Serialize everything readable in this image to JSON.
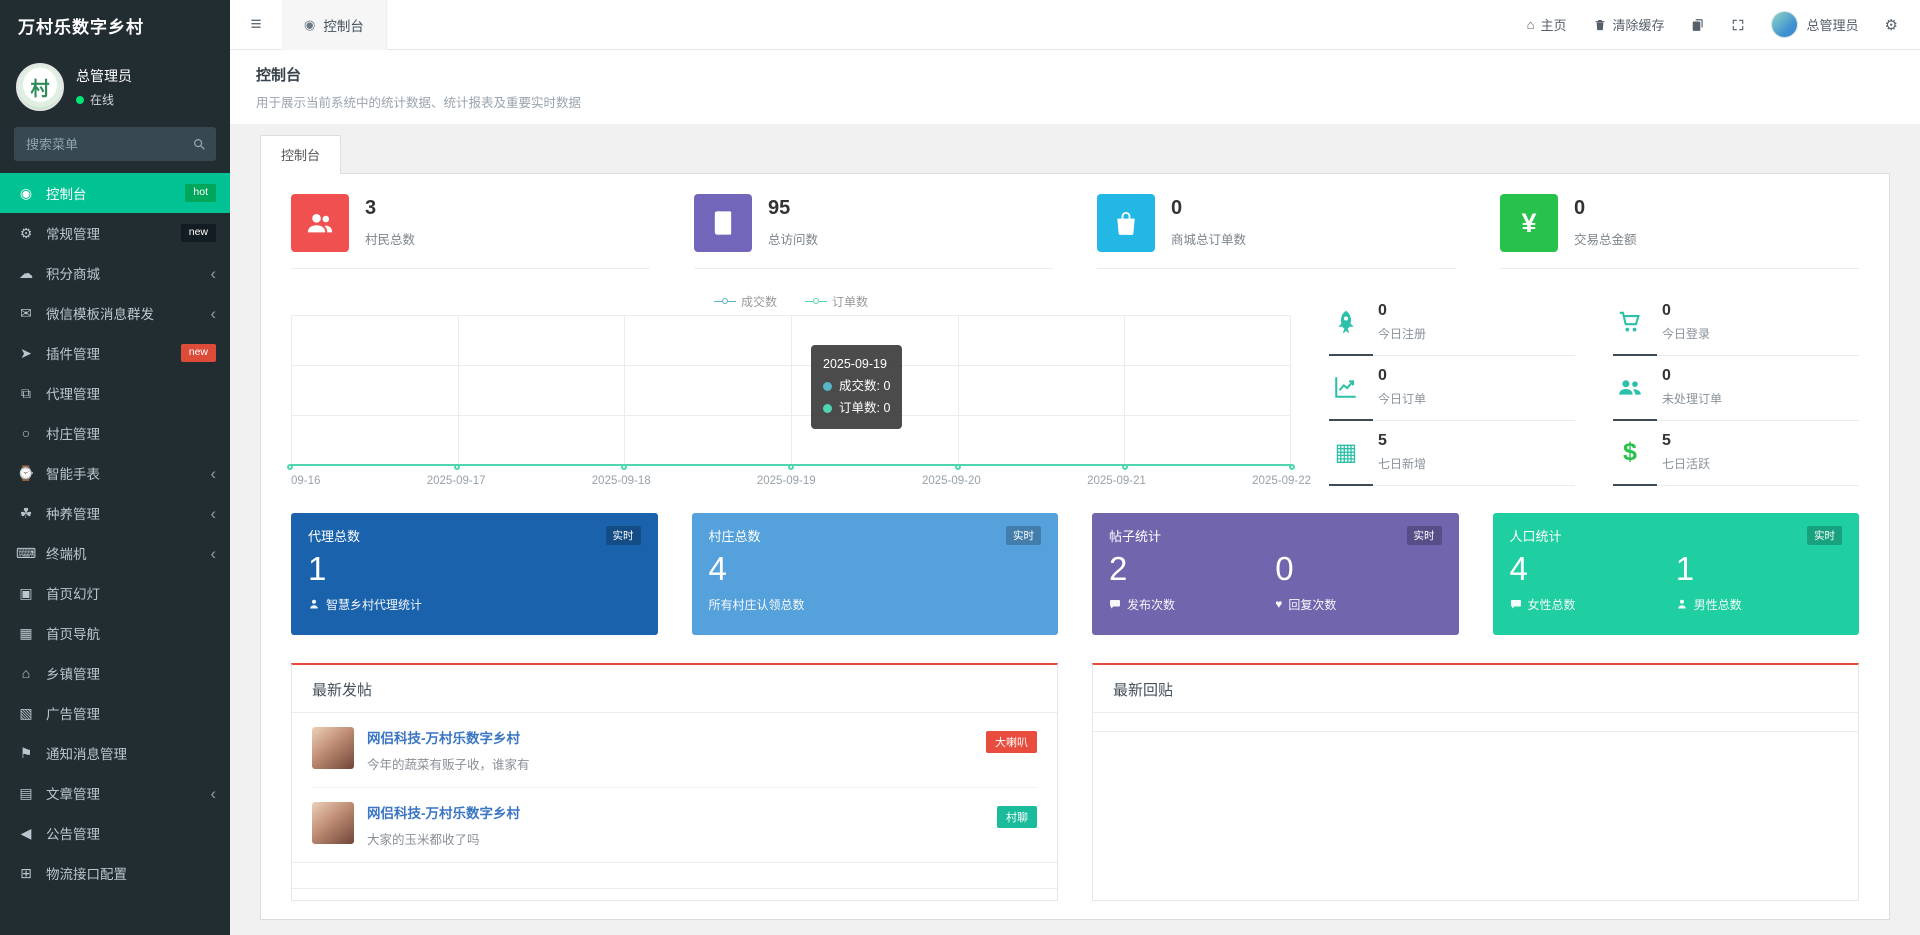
{
  "app": {
    "title": "万村乐数字乡村"
  },
  "user": {
    "name": "总管理员",
    "status": "在线"
  },
  "sidebar": {
    "search_placeholder": "搜索菜单",
    "items": [
      {
        "label": "控制台",
        "icon": "gauge",
        "badge": "hot",
        "badge_color": "green",
        "state": "active"
      },
      {
        "label": "常规管理",
        "icon": "cogs",
        "badge": "new",
        "badge_color": "dark"
      },
      {
        "label": "积分商城",
        "icon": "cloud",
        "chevron": true
      },
      {
        "label": "微信模板消息群发",
        "icon": "envelope",
        "chevron": true
      },
      {
        "label": "插件管理",
        "icon": "plane",
        "badge": "new",
        "badge_color": "red"
      },
      {
        "label": "代理管理",
        "icon": "sitemap"
      },
      {
        "label": "村庄管理",
        "icon": "circle"
      },
      {
        "label": "智能手表",
        "icon": "watch",
        "chevron": true
      },
      {
        "label": "种养管理",
        "icon": "leaf",
        "chevron": true
      },
      {
        "label": "终端机",
        "icon": "terminal",
        "chevron": true
      },
      {
        "label": "首页幻灯",
        "icon": "image"
      },
      {
        "label": "首页导航",
        "icon": "grid"
      },
      {
        "label": "乡镇管理",
        "icon": "bank"
      },
      {
        "label": "广告管理",
        "icon": "ad"
      },
      {
        "label": "通知消息管理",
        "icon": "bullhorn"
      },
      {
        "label": "文章管理",
        "icon": "file",
        "chevron": true
      },
      {
        "label": "公告管理",
        "icon": "volume"
      },
      {
        "label": "物流接口配置",
        "icon": "truck"
      }
    ]
  },
  "topbar": {
    "tab_label": "控制台",
    "home_label": "主页",
    "clear_cache_label": "清除缓存",
    "admin_label": "总管理员"
  },
  "page": {
    "title": "控制台",
    "subtitle": "用于展示当前系统中的统计数据、统计报表及重要实时数据",
    "tab_label": "控制台"
  },
  "stats": [
    {
      "value": "3",
      "label": "村民总数",
      "icon": "users",
      "color": "#f05050"
    },
    {
      "value": "95",
      "label": "总访问数",
      "icon": "book",
      "color": "#7266ba"
    },
    {
      "value": "0",
      "label": "商城总订单数",
      "icon": "bag",
      "color": "#23b7e5"
    },
    {
      "value": "0",
      "label": "交易总金额",
      "icon": "yen",
      "color": "#27c24c"
    }
  ],
  "chart_data": {
    "type": "line",
    "x": [
      "09-16",
      "2025-09-17",
      "2025-09-18",
      "2025-09-19",
      "2025-09-20",
      "2025-09-21",
      "2025-09-22"
    ],
    "series": [
      {
        "name": "成交数",
        "color": "#58b5c8",
        "values": [
          0,
          0,
          0,
          0,
          0,
          0,
          0
        ]
      },
      {
        "name": "订单数",
        "color": "#4fd6b0",
        "values": [
          0,
          0,
          0,
          0,
          0,
          0,
          0
        ]
      }
    ],
    "ylim": [
      0,
      1
    ],
    "grid": true,
    "legend_position": "top-center",
    "tooltip": {
      "title": "2025-09-19",
      "rows": [
        {
          "text": "成交数: 0",
          "color": "#58b5c8"
        },
        {
          "text": "订单数: 0",
          "color": "#4fd6b0"
        }
      ]
    }
  },
  "quick_stats": [
    {
      "value": "0",
      "label": "今日注册",
      "icon": "rocket"
    },
    {
      "value": "0",
      "label": "今日登录",
      "icon": "cart"
    },
    {
      "value": "0",
      "label": "今日订单",
      "icon": "chart"
    },
    {
      "value": "0",
      "label": "未处理订单",
      "icon": "group"
    },
    {
      "value": "5",
      "label": "七日新增",
      "icon": "table"
    },
    {
      "value": "5",
      "label": "七日活跃",
      "icon": "dollar"
    }
  ],
  "cards": [
    {
      "title": "代理总数",
      "badge": "实时",
      "color": "#1a62ab",
      "metrics": [
        {
          "value": "1",
          "icon": "person",
          "label": "智慧乡村代理统计"
        }
      ]
    },
    {
      "title": "村庄总数",
      "badge": "实时",
      "color": "#55a1dc",
      "metrics": [
        {
          "value": "4",
          "label": "所有村庄认领总数"
        }
      ]
    },
    {
      "title": "帖子统计",
      "badge": "实时",
      "color": "#7165ae",
      "metrics": [
        {
          "value": "2",
          "icon": "bubble",
          "label": "发布次数"
        },
        {
          "value": "0",
          "icon": "heart",
          "label": "回复次数"
        }
      ]
    },
    {
      "title": "人口统计",
      "badge": "实时",
      "color": "#1fcfa2",
      "metrics": [
        {
          "value": "4",
          "icon": "bubble",
          "label": "女性总数"
        },
        {
          "value": "1",
          "icon": "person",
          "label": "男性总数"
        }
      ]
    }
  ],
  "latest_posts": {
    "title": "最新发帖",
    "items": [
      {
        "author": "网侣科技-万村乐数字乡村",
        "text": "今年的蔬菜有贩子收，谁家有",
        "badge": "大喇叭",
        "badge_color": "#e74c3c"
      },
      {
        "author": "网侣科技-万村乐数字乡村",
        "text": "大家的玉米都收了吗",
        "badge": "村聊",
        "badge_color": "#1abc9c"
      }
    ]
  },
  "latest_replies": {
    "title": "最新回贴"
  }
}
